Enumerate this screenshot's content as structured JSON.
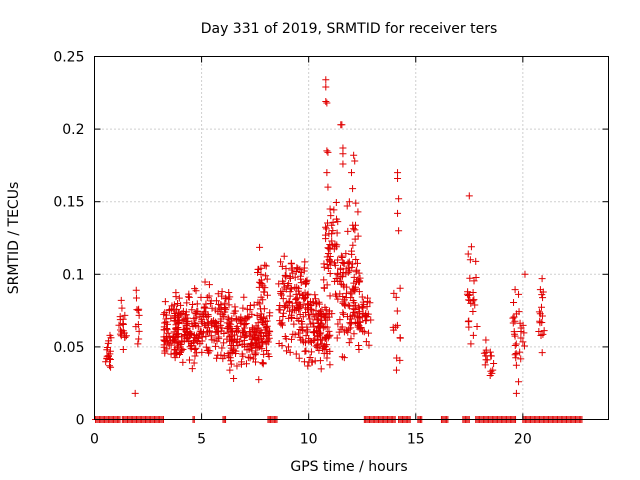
{
  "chart_data": {
    "type": "scatter",
    "title": "Day 331 of 2019, SRMTID for receiver ters",
    "xlabel": "GPS time / hours",
    "ylabel": "SRMTID / TECUs",
    "xlim": [
      0,
      24
    ],
    "ylim": [
      0,
      0.25
    ],
    "xticks": [
      0,
      5,
      10,
      15,
      20
    ],
    "yticks": [
      0,
      0.05,
      0.1,
      0.15,
      0.2,
      0.25
    ],
    "ytick_labels": [
      "0",
      "0.05",
      "0.1",
      "0.15",
      "0.2",
      "0.25"
    ],
    "grid": true,
    "legend": "none",
    "marker": "plus",
    "series_color": "#e00000",
    "zero_value_ranges": [
      [
        0.05,
        1.25
      ],
      [
        1.3,
        3.25
      ],
      [
        4.6,
        4.7
      ],
      [
        6.0,
        6.15
      ],
      [
        8.1,
        8.55
      ],
      [
        12.6,
        14.1
      ],
      [
        14.2,
        14.8
      ],
      [
        15.1,
        15.3
      ],
      [
        16.2,
        16.55
      ],
      [
        17.2,
        17.5
      ],
      [
        17.8,
        19.7
      ],
      [
        20.0,
        22.8
      ]
    ],
    "clusters": [
      {
        "x": [
          0.5,
          0.8
        ],
        "y": [
          0.028,
          0.068
        ],
        "n": 16,
        "seed": 1
      },
      {
        "x": [
          1.1,
          1.5
        ],
        "y": [
          0.04,
          0.083
        ],
        "n": 18,
        "seed": 2
      },
      {
        "x": [
          1.9,
          2.1
        ],
        "y": [
          0.045,
          0.09
        ],
        "n": 10,
        "seed": 3
      },
      {
        "x": [
          3.2,
          5.0
        ],
        "y": [
          0.028,
          0.097
        ],
        "n": 190,
        "seed": 4
      },
      {
        "x": [
          5.0,
          6.3
        ],
        "y": [
          0.03,
          0.103
        ],
        "n": 110,
        "seed": 5
      },
      {
        "x": [
          6.3,
          8.2
        ],
        "y": [
          0.022,
          0.092
        ],
        "n": 190,
        "seed": 6
      },
      {
        "x": [
          7.6,
          8.1
        ],
        "y": [
          0.06,
          0.125
        ],
        "n": 22,
        "seed": 7
      },
      {
        "x": [
          8.6,
          10.0
        ],
        "y": [
          0.028,
          0.125
        ],
        "n": 150,
        "seed": 8
      },
      {
        "x": [
          10.0,
          11.0
        ],
        "y": [
          0.025,
          0.1
        ],
        "n": 110,
        "seed": 9
      },
      {
        "x": [
          10.7,
          11.3
        ],
        "y": [
          0.06,
          0.16
        ],
        "n": 45,
        "seed": 10
      },
      {
        "x": [
          11.3,
          12.4
        ],
        "y": [
          0.03,
          0.15
        ],
        "n": 120,
        "seed": 11
      },
      {
        "x": [
          12.3,
          12.9
        ],
        "y": [
          0.04,
          0.1
        ],
        "n": 40,
        "seed": 12
      },
      {
        "x": [
          13.9,
          14.3
        ],
        "y": [
          0.035,
          0.11
        ],
        "n": 12,
        "seed": 13
      },
      {
        "x": [
          17.4,
          17.9
        ],
        "y": [
          0.04,
          0.12
        ],
        "n": 22,
        "seed": 14
      },
      {
        "x": [
          18.2,
          18.7
        ],
        "y": [
          0.025,
          0.06
        ],
        "n": 16,
        "seed": 15
      },
      {
        "x": [
          19.5,
          20.1
        ],
        "y": [
          0.015,
          0.1
        ],
        "n": 28,
        "seed": 16
      },
      {
        "x": [
          20.7,
          21.0
        ],
        "y": [
          0.04,
          0.098
        ],
        "n": 16,
        "seed": 17
      }
    ],
    "extra_points": [
      [
        0.7,
        0.037
      ],
      [
        0.75,
        0.036
      ],
      [
        1.9,
        0.018
      ],
      [
        1.25,
        0.082
      ],
      [
        1.95,
        0.089
      ],
      [
        10.8,
        0.234
      ],
      [
        10.8,
        0.229
      ],
      [
        10.8,
        0.219
      ],
      [
        10.85,
        0.218
      ],
      [
        11.5,
        0.203
      ],
      [
        11.55,
        0.203
      ],
      [
        10.85,
        0.185
      ],
      [
        10.9,
        0.184
      ],
      [
        11.6,
        0.187
      ],
      [
        11.6,
        0.183
      ],
      [
        12.1,
        0.182
      ],
      [
        12.15,
        0.178
      ],
      [
        11.6,
        0.176
      ],
      [
        10.85,
        0.17
      ],
      [
        12.0,
        0.17
      ],
      [
        10.9,
        0.16
      ],
      [
        12.05,
        0.159
      ],
      [
        11.9,
        0.15
      ],
      [
        12.2,
        0.149
      ],
      [
        11.0,
        0.145
      ],
      [
        11.8,
        0.147
      ],
      [
        12.3,
        0.143
      ],
      [
        14.15,
        0.17
      ],
      [
        14.15,
        0.166
      ],
      [
        14.2,
        0.152
      ],
      [
        14.15,
        0.142
      ],
      [
        14.2,
        0.13
      ],
      [
        14.1,
        0.034
      ],
      [
        17.5,
        0.154
      ],
      [
        17.45,
        0.114
      ],
      [
        17.55,
        0.11
      ],
      [
        17.6,
        0.119
      ],
      [
        19.7,
        0.018
      ],
      [
        19.8,
        0.026
      ],
      [
        20.1,
        0.1
      ],
      [
        20.9,
        0.097
      ]
    ]
  }
}
